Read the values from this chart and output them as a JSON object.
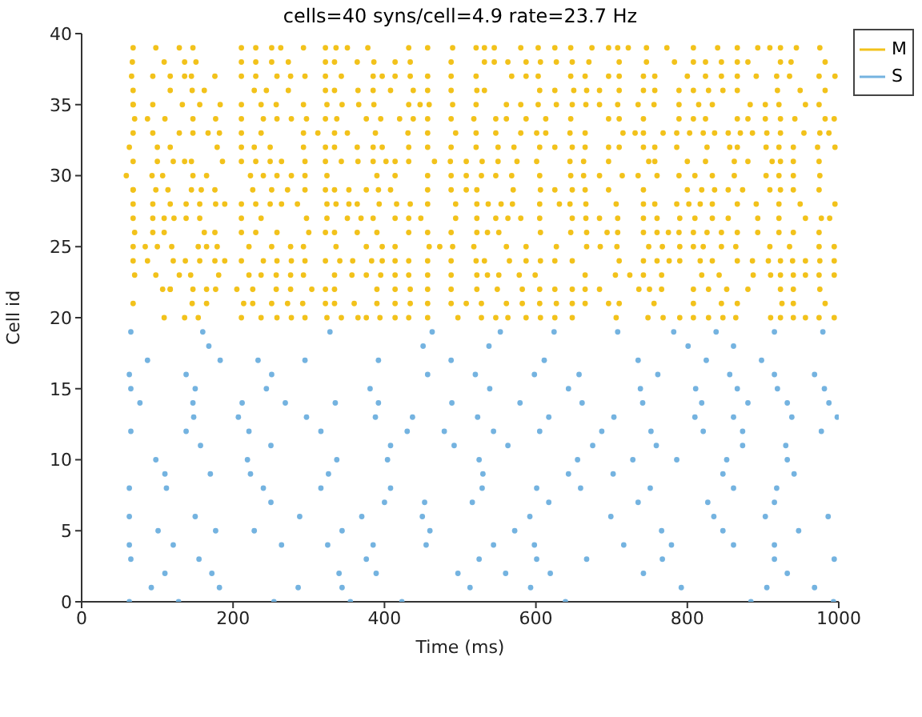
{
  "chart_data": {
    "type": "scatter",
    "title": "cells=40 syns/cell=4.9 rate=23.7 Hz",
    "xlabel": "Time (ms)",
    "ylabel": "Cell id",
    "xlim": [
      0,
      1000
    ],
    "xticks": [
      0,
      200,
      400,
      600,
      800,
      1000
    ],
    "ylim": [
      0,
      40
    ],
    "yticks": [
      0,
      5,
      10,
      15,
      20,
      25,
      30,
      35,
      40
    ],
    "grid": false,
    "legend": "top right",
    "marker": "circle",
    "series": [
      {
        "name": "M",
        "color": "#f2c21b",
        "x": [
          68,
          98,
          129,
          147,
          211,
          230,
          251,
          263,
          293,
          322,
          336,
          351,
          378,
          432,
          457,
          490,
          521,
          532,
          545,
          580,
          603,
          625,
          646,
          674,
          696,
          708,
          722,
          746,
          773,
          808,
          840,
          866,
          893,
          909,
          923,
          944,
          975,
          67,
          109,
          136,
          151,
          211,
          230,
          251,
          273,
          322,
          334,
          364,
          386,
          414,
          434,
          488,
          532,
          545,
          563,
          587,
          606,
          627,
          648,
          670,
          710,
          746,
          783,
          808,
          824,
          845,
          866,
          880,
          923,
          937,
          982,
          66,
          94,
          117,
          136,
          145,
          176,
          211,
          230,
          258,
          276,
          295,
          322,
          343,
          385,
          397,
          414,
          434,
          457,
          488,
          521,
          568,
          587,
          603,
          646,
          665,
          696,
          710,
          742,
          757,
          800,
          824,
          845,
          866,
          891,
          918,
          935,
          974,
          995,
          68,
          117,
          146,
          162,
          228,
          244,
          273,
          322,
          334,
          365,
          385,
          408,
          438,
          457,
          488,
          522,
          532,
          605,
          625,
          650,
          667,
          684,
          710,
          742,
          757,
          789,
          808,
          828,
          847,
          866,
          919,
          949,
          982,
          68,
          94,
          133,
          156,
          183,
          211,
          237,
          257,
          293,
          324,
          344,
          366,
          386,
          432,
          447,
          459,
          490,
          521,
          561,
          580,
          603,
          627,
          648,
          666,
          684,
          708,
          735,
          756,
          789,
          815,
          833,
          883,
          903,
          921,
          956,
          974,
          68,
          87,
          110,
          147,
          177,
          211,
          240,
          258,
          277,
          297,
          322,
          337,
          376,
          395,
          420,
          438,
          457,
          488,
          518,
          547,
          561,
          587,
          613,
          646,
          696,
          710,
          742,
          789,
          808,
          824,
          866,
          880,
          903,
          923,
          942,
          982,
          994,
          70,
          94,
          129,
          147,
          167,
          182,
          211,
          237,
          293,
          312,
          334,
          351,
          388,
          431,
          457,
          494,
          521,
          547,
          580,
          601,
          613,
          645,
          665,
          715,
          731,
          742,
          768,
          786,
          803,
          821,
          836,
          854,
          870,
          886,
          905,
          923,
          954,
          975,
          987,
          68,
          100,
          117,
          179,
          211,
          228,
          249,
          293,
          322,
          334,
          364,
          385,
          397,
          432,
          457,
          488,
          521,
          550,
          571,
          605,
          625,
          648,
          665,
          696,
          710,
          742,
          757,
          786,
          826,
          856,
          866,
          904,
          921,
          940,
          972,
          995,
          63,
          100,
          121,
          136,
          145,
          186,
          211,
          230,
          249,
          264,
          295,
          322,
          343,
          365,
          385,
          402,
          414,
          432,
          466,
          487,
          508,
          529,
          550,
          575,
          601,
          645,
          663,
          696,
          749,
          757,
          800,
          824,
          862,
          880,
          912,
          923,
          940,
          974,
          68,
          93,
          107,
          147,
          165,
          223,
          240,
          258,
          277,
          295,
          324,
          390,
          414,
          457,
          488,
          508,
          528,
          547,
          568,
          605,
          646,
          663,
          684,
          714,
          735,
          760,
          789,
          810,
          833,
          862,
          904,
          921,
          940,
          975,
          59,
          68,
          98,
          114,
          145,
          158,
          176,
          226,
          251,
          272,
          295,
          322,
          334,
          353,
          376,
          392,
          408,
          457,
          488,
          508,
          522,
          570,
          606,
          625,
          648,
          665,
          696,
          742,
          800,
          819,
          836,
          854,
          873,
          909,
          923,
          940,
          974,
          68,
          94,
          117,
          138,
          156,
          177,
          189,
          211,
          230,
          249,
          264,
          285,
          324,
          336,
          353,
          364,
          393,
          416,
          434,
          457,
          494,
          522,
          537,
          554,
          569,
          605,
          631,
          645,
          666,
          706,
          742,
          757,
          786,
          802,
          817,
          833,
          866,
          891,
          921,
          949,
          995,
          68,
          94,
          109,
          122,
          138,
          156,
          211,
          237,
          297,
          324,
          351,
          369,
          385,
          414,
          432,
          448,
          494,
          522,
          547,
          563,
          580,
          605,
          648,
          666,
          684,
          708,
          742,
          760,
          790,
          810,
          833,
          854,
          893,
          921,
          956,
          977,
          988,
          68,
          94,
          109,
          162,
          176,
          211,
          230,
          258,
          300,
          322,
          334,
          364,
          390,
          432,
          457,
          488,
          522,
          536,
          551,
          606,
          646,
          667,
          694,
          708,
          742,
          760,
          775,
          789,
          808,
          826,
          845,
          866,
          893,
          921,
          940,
          974,
          70,
          84,
          100,
          119,
          154,
          165,
          179,
          221,
          251,
          276,
          293,
          336,
          376,
          397,
          414,
          459,
          473,
          490,
          518,
          561,
          587,
          627,
          667,
          685,
          707,
          749,
          767,
          790,
          808,
          821,
          845,
          864,
          909,
          935,
          974,
          994,
          68,
          87,
          121,
          137,
          156,
          176,
          189,
          211,
          240,
          258,
          277,
          295,
          322,
          341,
          358,
          383,
          397,
          414,
          432,
          457,
          488,
          521,
          532,
          565,
          587,
          606,
          625,
          648,
          710,
          742,
          760,
          776,
          790,
          817,
          833,
          866,
          886,
          907,
          923,
          939,
          956,
          975,
          994,
          68,
          98,
          129,
          144,
          181,
          221,
          237,
          257,
          276,
          293,
          334,
          357,
          376,
          395,
          414,
          432,
          457,
          488,
          522,
          536,
          551,
          578,
          599,
          665,
          705,
          724,
          742,
          766,
          819,
          842,
          887,
          910,
          923,
          940,
          956,
          974,
          994,
          70,
          107,
          117,
          147,
          165,
          177,
          205,
          226,
          257,
          276,
          304,
          322,
          334,
          390,
          414,
          434,
          457,
          488,
          522,
          549,
          582,
          605,
          625,
          648,
          665,
          684,
          736,
          750,
          766,
          808,
          828,
          852,
          880,
          923,
          940,
          975,
          117,
          146,
          165,
          214,
          226,
          251,
          272,
          292,
          322,
          334,
          360,
          390,
          414,
          434,
          457,
          488,
          508,
          528,
          561,
          582,
          605,
          627,
          648,
          665,
          696,
          710,
          756,
          808,
          845,
          866,
          925,
          940,
          982,
          68,
          109,
          136,
          154,
          211,
          237,
          258,
          277,
          295,
          324,
          343,
          365,
          376,
          394,
          414,
          432,
          457,
          497,
          528,
          547,
          563,
          587,
          606,
          625,
          648,
          706,
          748,
          768,
          790,
          808,
          828,
          847,
          864,
          910,
          923,
          940,
          956,
          974,
          994
        ],
        "values": [
          39,
          39,
          39,
          39,
          39,
          39,
          39,
          39,
          39,
          39,
          39,
          39,
          39,
          39,
          39,
          39,
          39,
          39,
          39,
          39,
          39,
          39,
          39,
          39,
          39,
          39,
          39,
          39,
          39,
          39,
          39,
          39,
          39,
          39,
          39,
          39,
          39,
          38,
          38,
          38,
          38,
          38,
          38,
          38,
          38,
          38,
          38,
          38,
          38,
          38,
          38,
          38,
          38,
          38,
          38,
          38,
          38,
          38,
          38,
          38,
          38,
          38,
          38,
          38,
          38,
          38,
          38,
          38,
          38,
          38,
          38,
          37,
          37,
          37,
          37,
          37,
          37,
          37,
          37,
          37,
          37,
          37,
          37,
          37,
          37,
          37,
          37,
          37,
          37,
          37,
          37,
          37,
          37,
          37,
          37,
          37,
          37,
          37,
          37,
          37,
          37,
          37,
          37,
          37,
          37,
          37,
          37,
          37,
          37,
          36,
          36,
          36,
          36,
          36,
          36,
          36,
          36,
          36,
          36,
          36,
          36,
          36,
          36,
          36,
          36,
          36,
          36,
          36,
          36,
          36,
          36,
          36,
          36,
          36,
          36,
          36,
          36,
          36,
          36,
          36,
          36,
          36,
          35,
          35,
          35,
          35,
          35,
          35,
          35,
          35,
          35,
          35,
          35,
          35,
          35,
          35,
          35,
          35,
          35,
          35,
          35,
          35,
          35,
          35,
          35,
          35,
          35,
          35,
          35,
          35,
          35,
          35,
          35,
          35,
          35,
          35,
          35,
          35,
          35,
          34,
          34,
          34,
          34,
          34,
          34,
          34,
          34,
          34,
          34,
          34,
          34,
          34,
          34,
          34,
          34,
          34,
          34,
          34,
          34,
          34,
          34,
          34,
          34,
          34,
          34,
          34,
          34,
          34,
          34,
          34,
          34,
          34,
          34,
          34,
          34,
          34,
          33,
          33,
          33,
          33,
          33,
          33,
          33,
          33,
          33,
          33,
          33,
          33,
          33,
          33,
          33,
          33,
          33,
          33,
          33,
          33,
          33,
          33,
          33,
          33,
          33,
          33,
          33,
          33,
          33,
          33,
          33,
          33,
          33,
          33,
          33,
          33,
          33,
          33,
          33,
          32,
          32,
          32,
          32,
          32,
          32,
          32,
          32,
          32,
          32,
          32,
          32,
          32,
          32,
          32,
          32,
          32,
          32,
          32,
          32,
          32,
          32,
          32,
          32,
          32,
          32,
          32,
          32,
          32,
          32,
          32,
          32,
          32,
          32,
          32,
          32,
          31,
          31,
          31,
          31,
          31,
          31,
          31,
          31,
          31,
          31,
          31,
          31,
          31,
          31,
          31,
          31,
          31,
          31,
          31,
          31,
          31,
          31,
          31,
          31,
          31,
          31,
          31,
          31,
          31,
          31,
          31,
          31,
          31,
          31,
          31,
          31,
          31,
          31,
          30,
          30,
          30,
          30,
          30,
          30,
          30,
          30,
          30,
          30,
          30,
          30,
          30,
          30,
          30,
          30,
          30,
          30,
          30,
          30,
          30,
          30,
          30,
          30,
          30,
          30,
          30,
          30,
          30,
          30,
          30,
          30,
          30,
          30,
          29,
          29,
          29,
          29,
          29,
          29,
          29,
          29,
          29,
          29,
          29,
          29,
          29,
          29,
          29,
          29,
          29,
          29,
          29,
          29,
          29,
          29,
          29,
          29,
          29,
          29,
          29,
          29,
          29,
          29,
          29,
          29,
          29,
          29,
          29,
          29,
          29,
          28,
          28,
          28,
          28,
          28,
          28,
          28,
          28,
          28,
          28,
          28,
          28,
          28,
          28,
          28,
          28,
          28,
          28,
          28,
          28,
          28,
          28,
          28,
          28,
          28,
          28,
          28,
          28,
          28,
          28,
          28,
          28,
          28,
          28,
          28,
          28,
          28,
          28,
          28,
          28,
          28,
          27,
          27,
          27,
          27,
          27,
          27,
          27,
          27,
          27,
          27,
          27,
          27,
          27,
          27,
          27,
          27,
          27,
          27,
          27,
          27,
          27,
          27,
          27,
          27,
          27,
          27,
          27,
          27,
          27,
          27,
          27,
          27,
          27,
          27,
          27,
          27,
          27,
          26,
          26,
          26,
          26,
          26,
          26,
          26,
          26,
          26,
          26,
          26,
          26,
          26,
          26,
          26,
          26,
          26,
          26,
          26,
          26,
          26,
          26,
          26,
          26,
          26,
          26,
          26,
          26,
          26,
          26,
          26,
          26,
          26,
          26,
          26,
          26,
          25,
          25,
          25,
          25,
          25,
          25,
          25,
          25,
          25,
          25,
          25,
          25,
          25,
          25,
          25,
          25,
          25,
          25,
          25,
          25,
          25,
          25,
          25,
          25,
          25,
          25,
          25,
          25,
          25,
          25,
          25,
          25,
          25,
          25,
          25,
          25,
          24,
          24,
          24,
          24,
          24,
          24,
          24,
          24,
          24,
          24,
          24,
          24,
          24,
          24,
          24,
          24,
          24,
          24,
          24,
          24,
          24,
          24,
          24,
          24,
          24,
          24,
          24,
          24,
          24,
          24,
          24,
          24,
          24,
          24,
          24,
          24,
          24,
          24,
          24,
          24,
          24,
          24,
          24,
          23,
          23,
          23,
          23,
          23,
          23,
          23,
          23,
          23,
          23,
          23,
          23,
          23,
          23,
          23,
          23,
          23,
          23,
          23,
          23,
          23,
          23,
          23,
          23,
          23,
          23,
          23,
          23,
          23,
          23,
          23,
          23,
          23,
          23,
          23,
          23,
          23,
          22,
          22,
          22,
          22,
          22,
          22,
          22,
          22,
          22,
          22,
          22,
          22,
          22,
          22,
          22,
          22,
          22,
          22,
          22,
          22,
          22,
          22,
          22,
          22,
          22,
          22,
          22,
          22,
          22,
          22,
          22,
          22,
          22,
          22,
          22,
          22,
          21,
          21,
          21,
          21,
          21,
          21,
          21,
          21,
          21,
          21,
          21,
          21,
          21,
          21,
          21,
          21,
          21,
          21,
          21,
          21,
          21,
          21,
          21,
          21,
          21,
          21,
          21,
          21,
          21,
          21,
          21,
          21,
          21,
          20,
          20,
          20,
          20,
          20,
          20,
          20,
          20,
          20,
          20,
          20,
          20,
          20,
          20,
          20,
          20,
          20,
          20,
          20,
          20,
          20,
          20,
          20,
          20,
          20,
          20,
          20,
          20,
          20,
          20,
          20,
          20,
          20,
          20,
          20,
          20,
          20,
          20
        ]
      },
      {
        "name": "S",
        "color": "#74b3e0",
        "x": [
          65,
          160,
          328,
          463,
          553,
          624,
          708,
          782,
          838,
          915,
          979,
          168,
          451,
          538,
          801,
          861,
          87,
          183,
          233,
          295,
          392,
          488,
          611,
          735,
          825,
          898,
          63,
          138,
          251,
          457,
          520,
          598,
          657,
          761,
          856,
          915,
          968,
          65,
          150,
          244,
          381,
          539,
          643,
          738,
          811,
          866,
          919,
          981,
          77,
          147,
          212,
          269,
          335,
          392,
          489,
          579,
          661,
          741,
          819,
          880,
          932,
          987,
          148,
          207,
          297,
          388,
          437,
          523,
          617,
          703,
          810,
          861,
          938,
          998,
          65,
          138,
          221,
          316,
          430,
          479,
          544,
          605,
          687,
          752,
          821,
          873,
          977,
          157,
          250,
          408,
          492,
          563,
          675,
          759,
          873,
          930,
          98,
          219,
          337,
          404,
          525,
          655,
          728,
          786,
          852,
          932,
          110,
          170,
          223,
          326,
          530,
          643,
          702,
          847,
          941,
          63,
          112,
          240,
          316,
          408,
          529,
          601,
          659,
          751,
          861,
          918,
          250,
          400,
          453,
          516,
          617,
          735,
          827,
          915,
          63,
          150,
          288,
          370,
          450,
          592,
          699,
          835,
          903,
          986,
          101,
          177,
          228,
          344,
          460,
          572,
          766,
          847,
          947,
          63,
          121,
          264,
          325,
          385,
          455,
          544,
          598,
          716,
          779,
          861,
          915,
          65,
          155,
          376,
          525,
          601,
          667,
          767,
          915,
          994,
          110,
          172,
          340,
          389,
          497,
          560,
          619,
          742,
          932,
          92,
          182,
          286,
          344,
          513,
          593,
          792,
          905,
          968,
          63,
          128,
          254,
          355,
          423,
          639,
          884,
          993
        ],
        "values": [
          19,
          19,
          19,
          19,
          19,
          19,
          19,
          19,
          19,
          19,
          19,
          18,
          18,
          18,
          18,
          18,
          17,
          17,
          17,
          17,
          17,
          17,
          17,
          17,
          17,
          17,
          16,
          16,
          16,
          16,
          16,
          16,
          16,
          16,
          16,
          16,
          16,
          15,
          15,
          15,
          15,
          15,
          15,
          15,
          15,
          15,
          15,
          15,
          14,
          14,
          14,
          14,
          14,
          14,
          14,
          14,
          14,
          14,
          14,
          14,
          14,
          14,
          13,
          13,
          13,
          13,
          13,
          13,
          13,
          13,
          13,
          13,
          13,
          13,
          12,
          12,
          12,
          12,
          12,
          12,
          12,
          12,
          12,
          12,
          12,
          12,
          12,
          11,
          11,
          11,
          11,
          11,
          11,
          11,
          11,
          11,
          10,
          10,
          10,
          10,
          10,
          10,
          10,
          10,
          10,
          10,
          9,
          9,
          9,
          9,
          9,
          9,
          9,
          9,
          9,
          8,
          8,
          8,
          8,
          8,
          8,
          8,
          8,
          8,
          8,
          8,
          7,
          7,
          7,
          7,
          7,
          7,
          7,
          7,
          6,
          6,
          6,
          6,
          6,
          6,
          6,
          6,
          6,
          6,
          5,
          5,
          5,
          5,
          5,
          5,
          5,
          5,
          5,
          4,
          4,
          4,
          4,
          4,
          4,
          4,
          4,
          4,
          4,
          4,
          4,
          3,
          3,
          3,
          3,
          3,
          3,
          3,
          3,
          3,
          2,
          2,
          2,
          2,
          2,
          2,
          2,
          2,
          2,
          1,
          1,
          1,
          1,
          1,
          1,
          1,
          1,
          1,
          0,
          0,
          0,
          0,
          0,
          0,
          0,
          0
        ]
      }
    ]
  }
}
